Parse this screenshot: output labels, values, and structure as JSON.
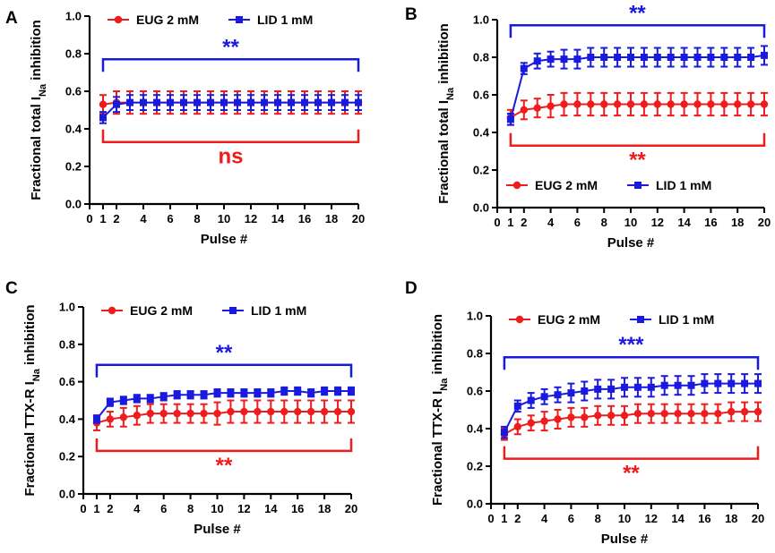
{
  "colors": {
    "eug": "#ee1c1c",
    "lid": "#1a1adf",
    "axis": "#000000"
  },
  "chart_data": [
    {
      "type": "line",
      "panel": "A",
      "ylabel_main": "Fractional total I",
      "ylabel_sub": "Na",
      "ylabel_tail": " inhibition",
      "xlabel": "Pulse #",
      "xticks": [
        0,
        1,
        2,
        4,
        6,
        8,
        10,
        12,
        14,
        16,
        18,
        20
      ],
      "yticks": [
        "0.0",
        "0.2",
        "0.4",
        "0.6",
        "0.8",
        "1.0"
      ],
      "xlim": [
        0,
        20
      ],
      "ylim": [
        0,
        1.0
      ],
      "legend_position": "top",
      "series": [
        {
          "name": "EUG 2 mM",
          "x": [
            1,
            2,
            3,
            4,
            5,
            6,
            7,
            8,
            9,
            10,
            11,
            12,
            13,
            14,
            15,
            16,
            17,
            18,
            19,
            20
          ],
          "y": [
            0.53,
            0.54,
            0.54,
            0.54,
            0.54,
            0.54,
            0.54,
            0.54,
            0.54,
            0.54,
            0.54,
            0.54,
            0.54,
            0.54,
            0.54,
            0.54,
            0.54,
            0.54,
            0.54,
            0.54
          ],
          "err": [
            0.05,
            0.06,
            0.06,
            0.06,
            0.06,
            0.06,
            0.06,
            0.06,
            0.06,
            0.06,
            0.06,
            0.06,
            0.06,
            0.06,
            0.06,
            0.06,
            0.06,
            0.06,
            0.06,
            0.06
          ]
        },
        {
          "name": "LID 1 mM",
          "x": [
            1,
            2,
            3,
            4,
            5,
            6,
            7,
            8,
            9,
            10,
            11,
            12,
            13,
            14,
            15,
            16,
            17,
            18,
            19,
            20
          ],
          "y": [
            0.46,
            0.53,
            0.54,
            0.54,
            0.54,
            0.54,
            0.54,
            0.54,
            0.54,
            0.54,
            0.54,
            0.54,
            0.54,
            0.54,
            0.54,
            0.54,
            0.54,
            0.54,
            0.54,
            0.54
          ],
          "err": [
            0.03,
            0.04,
            0.04,
            0.04,
            0.04,
            0.04,
            0.04,
            0.04,
            0.04,
            0.04,
            0.04,
            0.04,
            0.04,
            0.04,
            0.04,
            0.04,
            0.04,
            0.04,
            0.04,
            0.04
          ]
        }
      ],
      "brackets": [
        {
          "series": "LID 1 mM",
          "label": "**",
          "side": "above",
          "level": 0.77
        },
        {
          "series": "EUG 2 mM",
          "label": "ns",
          "side": "below",
          "level": 0.33
        }
      ]
    },
    {
      "type": "line",
      "panel": "B",
      "ylabel_main": "Fractional total I",
      "ylabel_sub": "Na",
      "ylabel_tail": " inhibition",
      "xlabel": "Pulse #",
      "xticks": [
        0,
        1,
        2,
        4,
        6,
        8,
        10,
        12,
        14,
        16,
        18,
        20
      ],
      "yticks": [
        "0.0",
        "0.2",
        "0.4",
        "0.6",
        "0.8",
        "1.0"
      ],
      "xlim": [
        0,
        20
      ],
      "ylim": [
        0,
        1.0
      ],
      "legend_position": "bottom",
      "series": [
        {
          "name": "EUG 2 mM",
          "x": [
            1,
            2,
            3,
            4,
            5,
            6,
            7,
            8,
            9,
            10,
            11,
            12,
            13,
            14,
            15,
            16,
            17,
            18,
            19,
            20
          ],
          "y": [
            0.48,
            0.52,
            0.53,
            0.54,
            0.55,
            0.55,
            0.55,
            0.55,
            0.55,
            0.55,
            0.55,
            0.55,
            0.55,
            0.55,
            0.55,
            0.55,
            0.55,
            0.55,
            0.55,
            0.55
          ],
          "err": [
            0.04,
            0.05,
            0.05,
            0.06,
            0.06,
            0.06,
            0.06,
            0.06,
            0.06,
            0.06,
            0.06,
            0.06,
            0.06,
            0.06,
            0.06,
            0.06,
            0.06,
            0.06,
            0.06,
            0.06
          ]
        },
        {
          "name": "LID 1 mM",
          "x": [
            1,
            2,
            3,
            4,
            5,
            6,
            7,
            8,
            9,
            10,
            11,
            12,
            13,
            14,
            15,
            16,
            17,
            18,
            19,
            20
          ],
          "y": [
            0.47,
            0.74,
            0.78,
            0.79,
            0.79,
            0.79,
            0.8,
            0.8,
            0.8,
            0.8,
            0.8,
            0.8,
            0.8,
            0.8,
            0.8,
            0.8,
            0.8,
            0.8,
            0.8,
            0.81
          ],
          "err": [
            0.03,
            0.03,
            0.04,
            0.04,
            0.05,
            0.05,
            0.05,
            0.05,
            0.05,
            0.05,
            0.05,
            0.05,
            0.05,
            0.05,
            0.05,
            0.05,
            0.05,
            0.05,
            0.05,
            0.05
          ]
        }
      ],
      "brackets": [
        {
          "series": "LID 1 mM",
          "label": "**",
          "side": "above",
          "level": 0.97
        },
        {
          "series": "EUG 2 mM",
          "label": "**",
          "side": "below",
          "level": 0.33
        }
      ]
    },
    {
      "type": "line",
      "panel": "C",
      "ylabel_main": "Fractional TTX-R I",
      "ylabel_sub": "Na",
      "ylabel_tail": " inhibition",
      "xlabel": "Pulse #",
      "xticks": [
        0,
        1,
        2,
        4,
        6,
        8,
        10,
        12,
        14,
        16,
        18,
        20
      ],
      "yticks": [
        "0.0",
        "0.2",
        "0.4",
        "0.6",
        "0.8",
        "1.0"
      ],
      "xlim": [
        0,
        20
      ],
      "ylim": [
        0,
        1.0
      ],
      "legend_position": "top",
      "series": [
        {
          "name": "EUG 2 mM",
          "x": [
            1,
            2,
            3,
            4,
            5,
            6,
            7,
            8,
            9,
            10,
            11,
            12,
            13,
            14,
            15,
            16,
            17,
            18,
            19,
            20
          ],
          "y": [
            0.38,
            0.4,
            0.41,
            0.42,
            0.43,
            0.43,
            0.43,
            0.43,
            0.43,
            0.43,
            0.44,
            0.44,
            0.44,
            0.44,
            0.44,
            0.44,
            0.44,
            0.44,
            0.44,
            0.44
          ],
          "err": [
            0.04,
            0.04,
            0.05,
            0.05,
            0.05,
            0.05,
            0.05,
            0.05,
            0.05,
            0.06,
            0.06,
            0.06,
            0.06,
            0.06,
            0.06,
            0.06,
            0.06,
            0.06,
            0.06,
            0.06
          ]
        },
        {
          "name": "LID 1 mM",
          "x": [
            1,
            2,
            3,
            4,
            5,
            6,
            7,
            8,
            9,
            10,
            11,
            12,
            13,
            14,
            15,
            16,
            17,
            18,
            19,
            20
          ],
          "y": [
            0.4,
            0.49,
            0.5,
            0.51,
            0.51,
            0.52,
            0.53,
            0.53,
            0.53,
            0.54,
            0.54,
            0.54,
            0.54,
            0.54,
            0.55,
            0.55,
            0.54,
            0.55,
            0.55,
            0.55
          ],
          "err": [
            0.02,
            0.02,
            0.02,
            0.02,
            0.02,
            0.02,
            0.02,
            0.02,
            0.02,
            0.02,
            0.02,
            0.02,
            0.02,
            0.02,
            0.02,
            0.02,
            0.02,
            0.02,
            0.02,
            0.02
          ]
        }
      ],
      "brackets": [
        {
          "series": "LID 1 mM",
          "label": "**",
          "side": "above",
          "level": 0.69
        },
        {
          "series": "EUG 2 mM",
          "label": "**",
          "side": "below",
          "level": 0.23
        }
      ]
    },
    {
      "type": "line",
      "panel": "D",
      "ylabel_main": "Fractional TTX-R I",
      "ylabel_sub": "Na",
      "ylabel_tail": " inhibition",
      "xlabel": "Pulse #",
      "xticks": [
        0,
        1,
        2,
        4,
        6,
        8,
        10,
        12,
        14,
        16,
        18,
        20
      ],
      "yticks": [
        "0.0",
        "0.2",
        "0.4",
        "0.6",
        "0.8",
        "1.0"
      ],
      "xlim": [
        0,
        20
      ],
      "ylim": [
        0,
        1.0
      ],
      "legend_position": "top",
      "series": [
        {
          "name": "EUG 2 mM",
          "x": [
            1,
            2,
            3,
            4,
            5,
            6,
            7,
            8,
            9,
            10,
            11,
            12,
            13,
            14,
            15,
            16,
            17,
            18,
            19,
            20
          ],
          "y": [
            0.37,
            0.41,
            0.43,
            0.44,
            0.45,
            0.46,
            0.46,
            0.47,
            0.47,
            0.47,
            0.48,
            0.48,
            0.48,
            0.48,
            0.48,
            0.48,
            0.48,
            0.49,
            0.49,
            0.49
          ],
          "err": [
            0.03,
            0.04,
            0.04,
            0.05,
            0.05,
            0.05,
            0.05,
            0.05,
            0.05,
            0.05,
            0.05,
            0.05,
            0.05,
            0.05,
            0.05,
            0.05,
            0.05,
            0.05,
            0.05,
            0.05
          ]
        },
        {
          "name": "LID 1 mM",
          "x": [
            1,
            2,
            3,
            4,
            5,
            6,
            7,
            8,
            9,
            10,
            11,
            12,
            13,
            14,
            15,
            16,
            17,
            18,
            19,
            20
          ],
          "y": [
            0.38,
            0.52,
            0.55,
            0.57,
            0.58,
            0.59,
            0.6,
            0.61,
            0.61,
            0.62,
            0.62,
            0.62,
            0.63,
            0.63,
            0.63,
            0.64,
            0.64,
            0.64,
            0.64,
            0.64
          ],
          "err": [
            0.03,
            0.03,
            0.04,
            0.04,
            0.04,
            0.05,
            0.05,
            0.05,
            0.05,
            0.05,
            0.05,
            0.05,
            0.05,
            0.05,
            0.05,
            0.05,
            0.05,
            0.05,
            0.05,
            0.05
          ]
        }
      ],
      "brackets": [
        {
          "series": "LID 1 mM",
          "label": "***",
          "side": "above",
          "level": 0.78
        },
        {
          "series": "EUG 2 mM",
          "label": "**",
          "side": "below",
          "level": 0.24
        }
      ]
    }
  ]
}
